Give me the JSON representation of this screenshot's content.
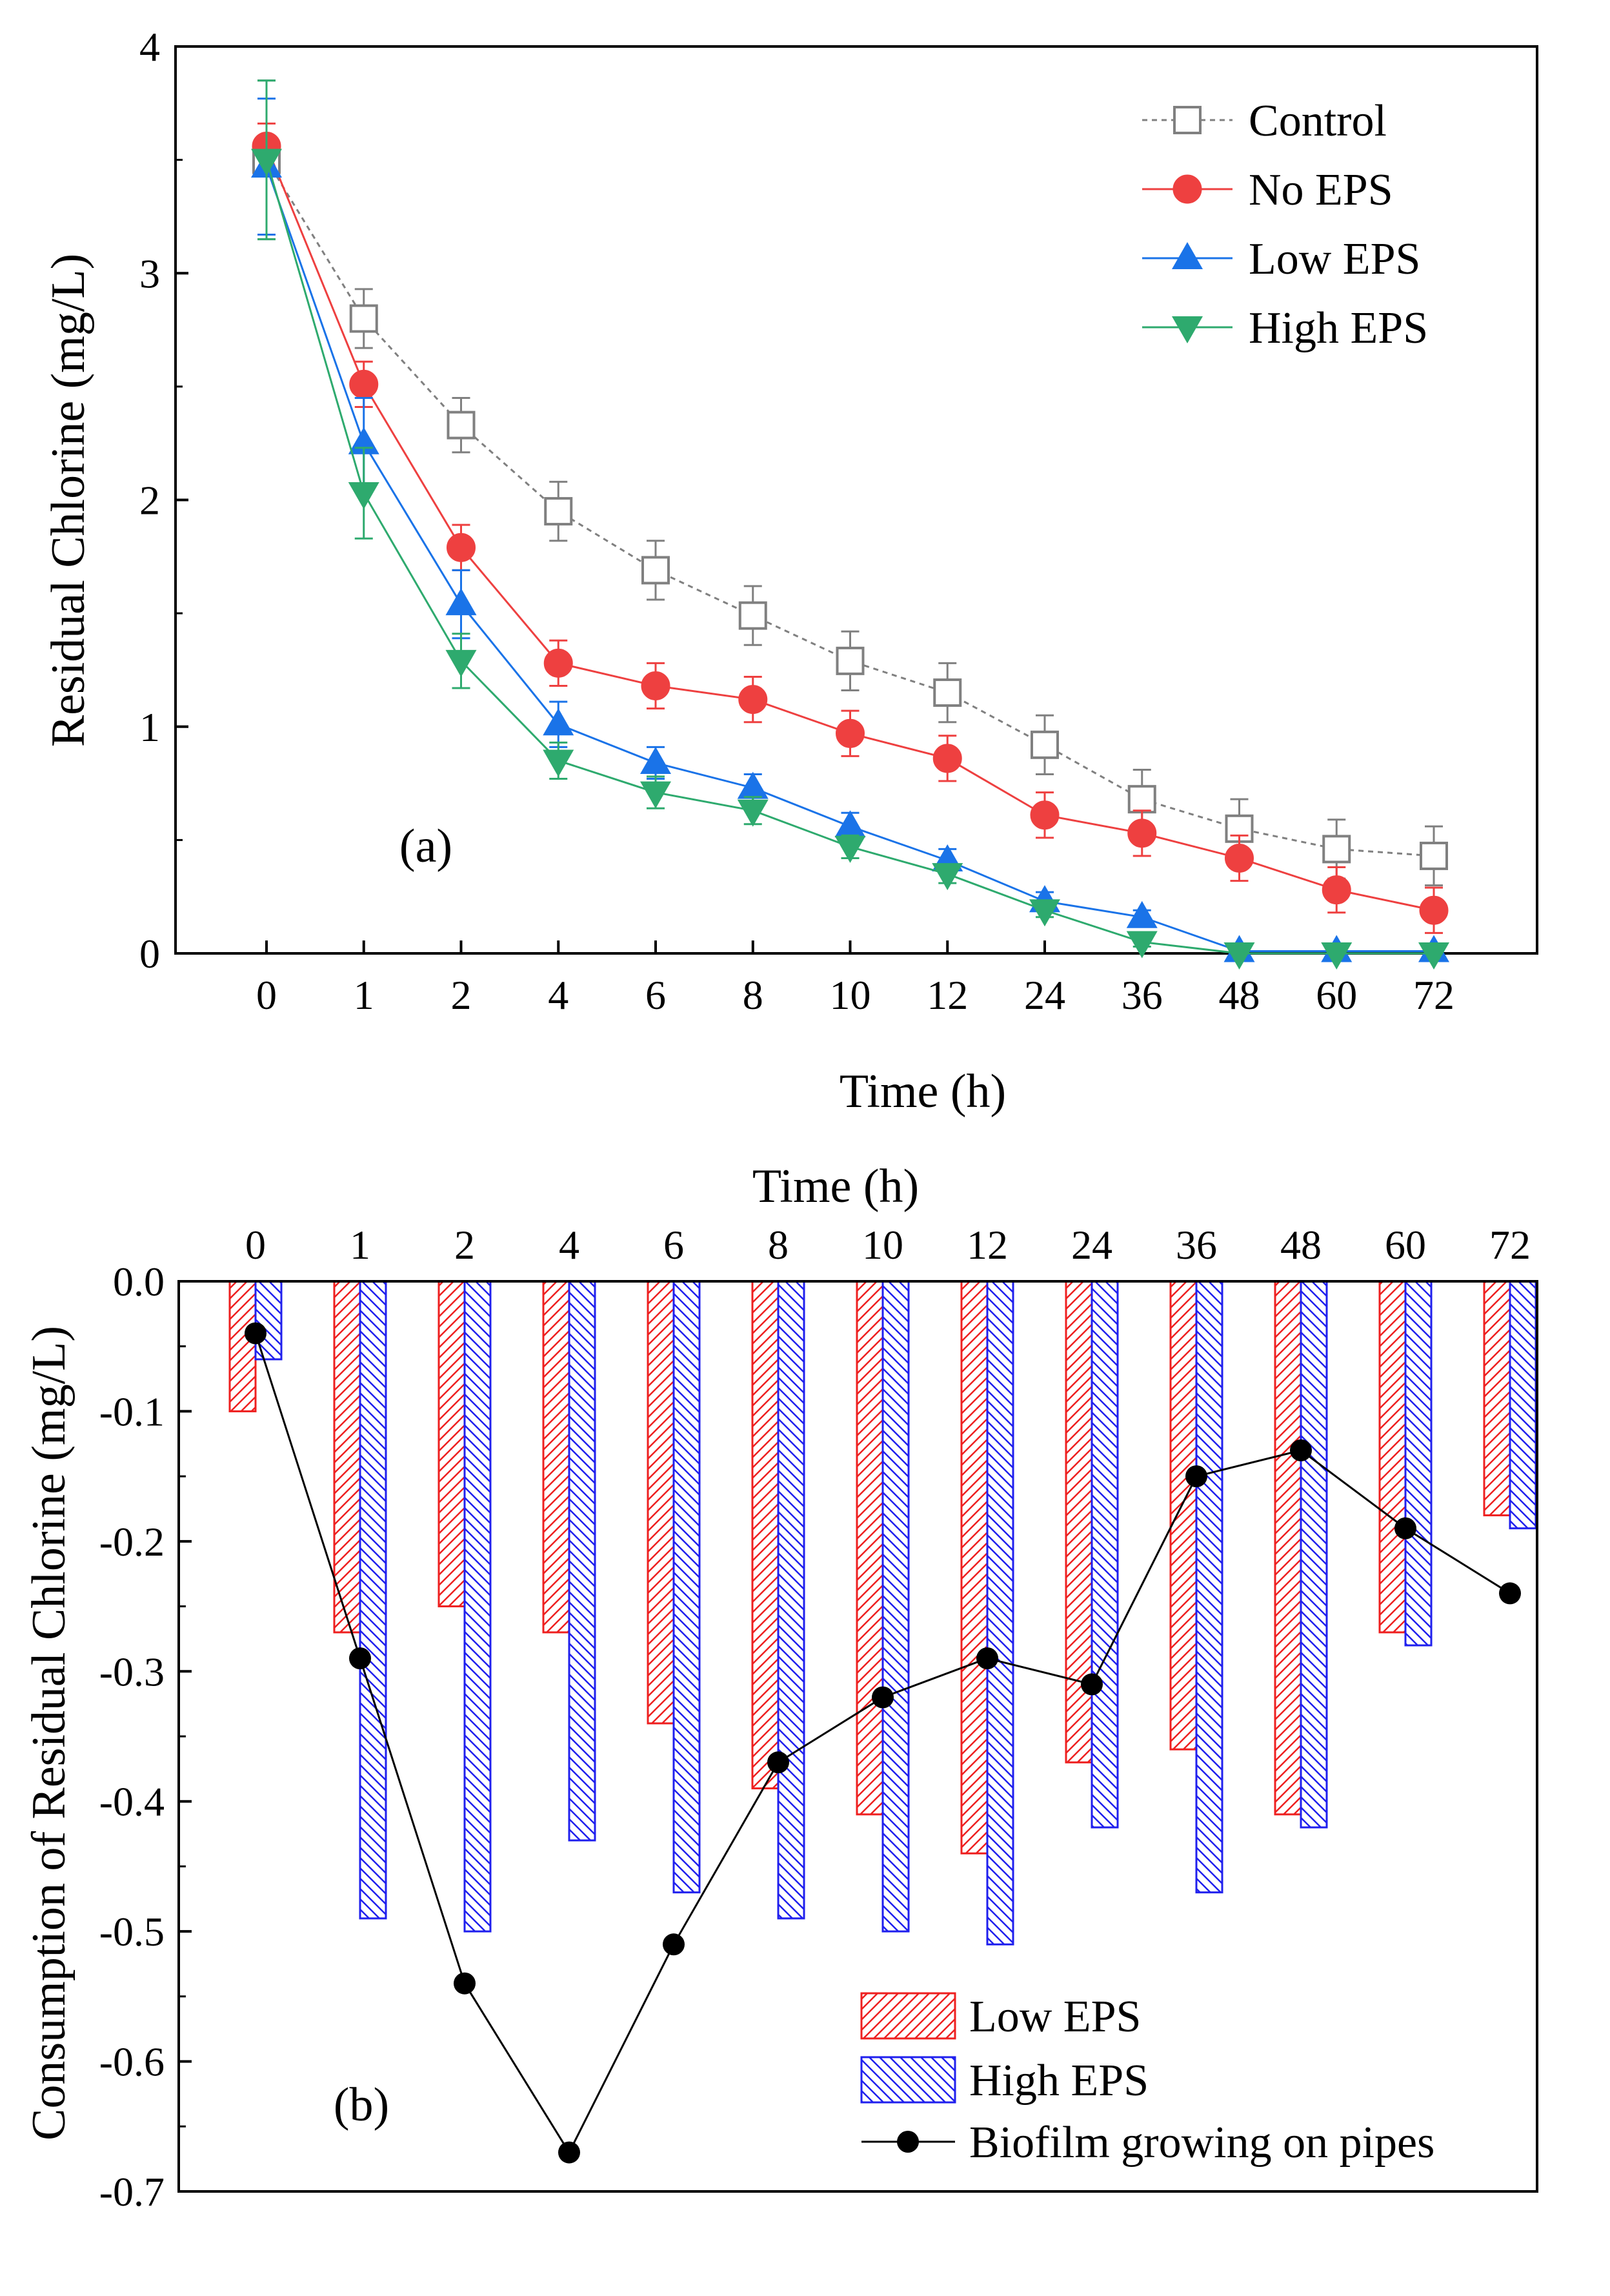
{
  "chart_data": [
    {
      "type": "line",
      "panel_label": "(a)",
      "title": "",
      "xlabel": "Time (h)",
      "ylabel": "Residual Chlorine (mg/L)",
      "categories": [
        "0",
        "1",
        "2",
        "4",
        "6",
        "8",
        "10",
        "12",
        "24",
        "36",
        "48",
        "60",
        "72"
      ],
      "yticks": [
        "0",
        "1",
        "2",
        "3",
        "4"
      ],
      "ylim": [
        0,
        4
      ],
      "grid": false,
      "legend_position": "top-right",
      "series": [
        {
          "name": "Control",
          "color": "#808080",
          "marker": "open-square",
          "dashed": true,
          "values": [
            3.5,
            2.8,
            2.33,
            1.95,
            1.69,
            1.49,
            1.29,
            1.15,
            0.92,
            0.68,
            0.55,
            0.46,
            0.43
          ],
          "errors": [
            0.35,
            0.13,
            0.12,
            0.13,
            0.13,
            0.13,
            0.13,
            0.13,
            0.13,
            0.13,
            0.13,
            0.13,
            0.13
          ]
        },
        {
          "name": "No EPS",
          "color": "#ee4040",
          "marker": "circle",
          "dashed": false,
          "values": [
            3.56,
            2.51,
            1.79,
            1.28,
            1.18,
            1.12,
            0.97,
            0.86,
            0.61,
            0.53,
            0.42,
            0.28,
            0.19
          ],
          "errors": [
            0.1,
            0.1,
            0.1,
            0.1,
            0.1,
            0.1,
            0.1,
            0.1,
            0.1,
            0.1,
            0.1,
            0.1,
            0.1
          ]
        },
        {
          "name": "Low EPS",
          "color": "#1a73e8",
          "marker": "triangle-up",
          "dashed": false,
          "values": [
            3.47,
            2.25,
            1.54,
            1.01,
            0.84,
            0.73,
            0.56,
            0.41,
            0.23,
            0.16,
            0.01,
            0.01,
            0.01
          ],
          "errors": [
            0.3,
            0.2,
            0.15,
            0.1,
            0.07,
            0.06,
            0.06,
            0.05,
            0.04,
            0.03,
            0.02,
            0.02,
            0.02
          ]
        },
        {
          "name": "High EPS",
          "color": "#2eaa6e",
          "marker": "triangle-down",
          "dashed": false,
          "values": [
            3.5,
            2.03,
            1.29,
            0.85,
            0.71,
            0.63,
            0.47,
            0.35,
            0.19,
            0.05,
            0.0,
            0.0,
            0.0
          ],
          "errors": [
            0.35,
            0.2,
            0.12,
            0.08,
            0.07,
            0.06,
            0.05,
            0.04,
            0.03,
            0.02,
            0.02,
            0.02,
            0.02
          ]
        }
      ]
    },
    {
      "type": "bar",
      "panel_label": "(b)",
      "title": "",
      "xlabel": "Time (h)",
      "ylabel": "Consumption of Residual Chlorine (mg/L)",
      "categories": [
        "0",
        "1",
        "2",
        "4",
        "6",
        "8",
        "10",
        "12",
        "24",
        "36",
        "48",
        "60",
        "72"
      ],
      "yticks": [
        "0.0",
        "-0.1",
        "-0.2",
        "-0.3",
        "-0.4",
        "-0.5",
        "-0.6",
        "-0.7"
      ],
      "ylim": [
        -0.7,
        0.0
      ],
      "grid": false,
      "legend_position": "bottom-right",
      "series": [
        {
          "name": "Low EPS",
          "kind": "bar",
          "color": "#ee2020",
          "hatch": "forward-diagonal",
          "values": [
            -0.1,
            -0.27,
            -0.25,
            -0.27,
            -0.34,
            -0.39,
            -0.41,
            -0.44,
            -0.37,
            -0.36,
            -0.41,
            -0.27,
            -0.18
          ]
        },
        {
          "name": "High EPS",
          "kind": "bar",
          "color": "#2020ee",
          "hatch": "back-diagonal",
          "values": [
            -0.06,
            -0.49,
            -0.5,
            -0.43,
            -0.47,
            -0.49,
            -0.5,
            -0.51,
            -0.42,
            -0.47,
            -0.42,
            -0.28,
            -0.19
          ]
        },
        {
          "name": "Biofilm growing on pipes",
          "kind": "line",
          "color": "#000000",
          "values": [
            -0.04,
            -0.29,
            -0.54,
            -0.67,
            -0.51,
            -0.37,
            -0.32,
            -0.29,
            -0.31,
            -0.15,
            -0.13,
            -0.19,
            -0.24
          ]
        }
      ]
    }
  ]
}
